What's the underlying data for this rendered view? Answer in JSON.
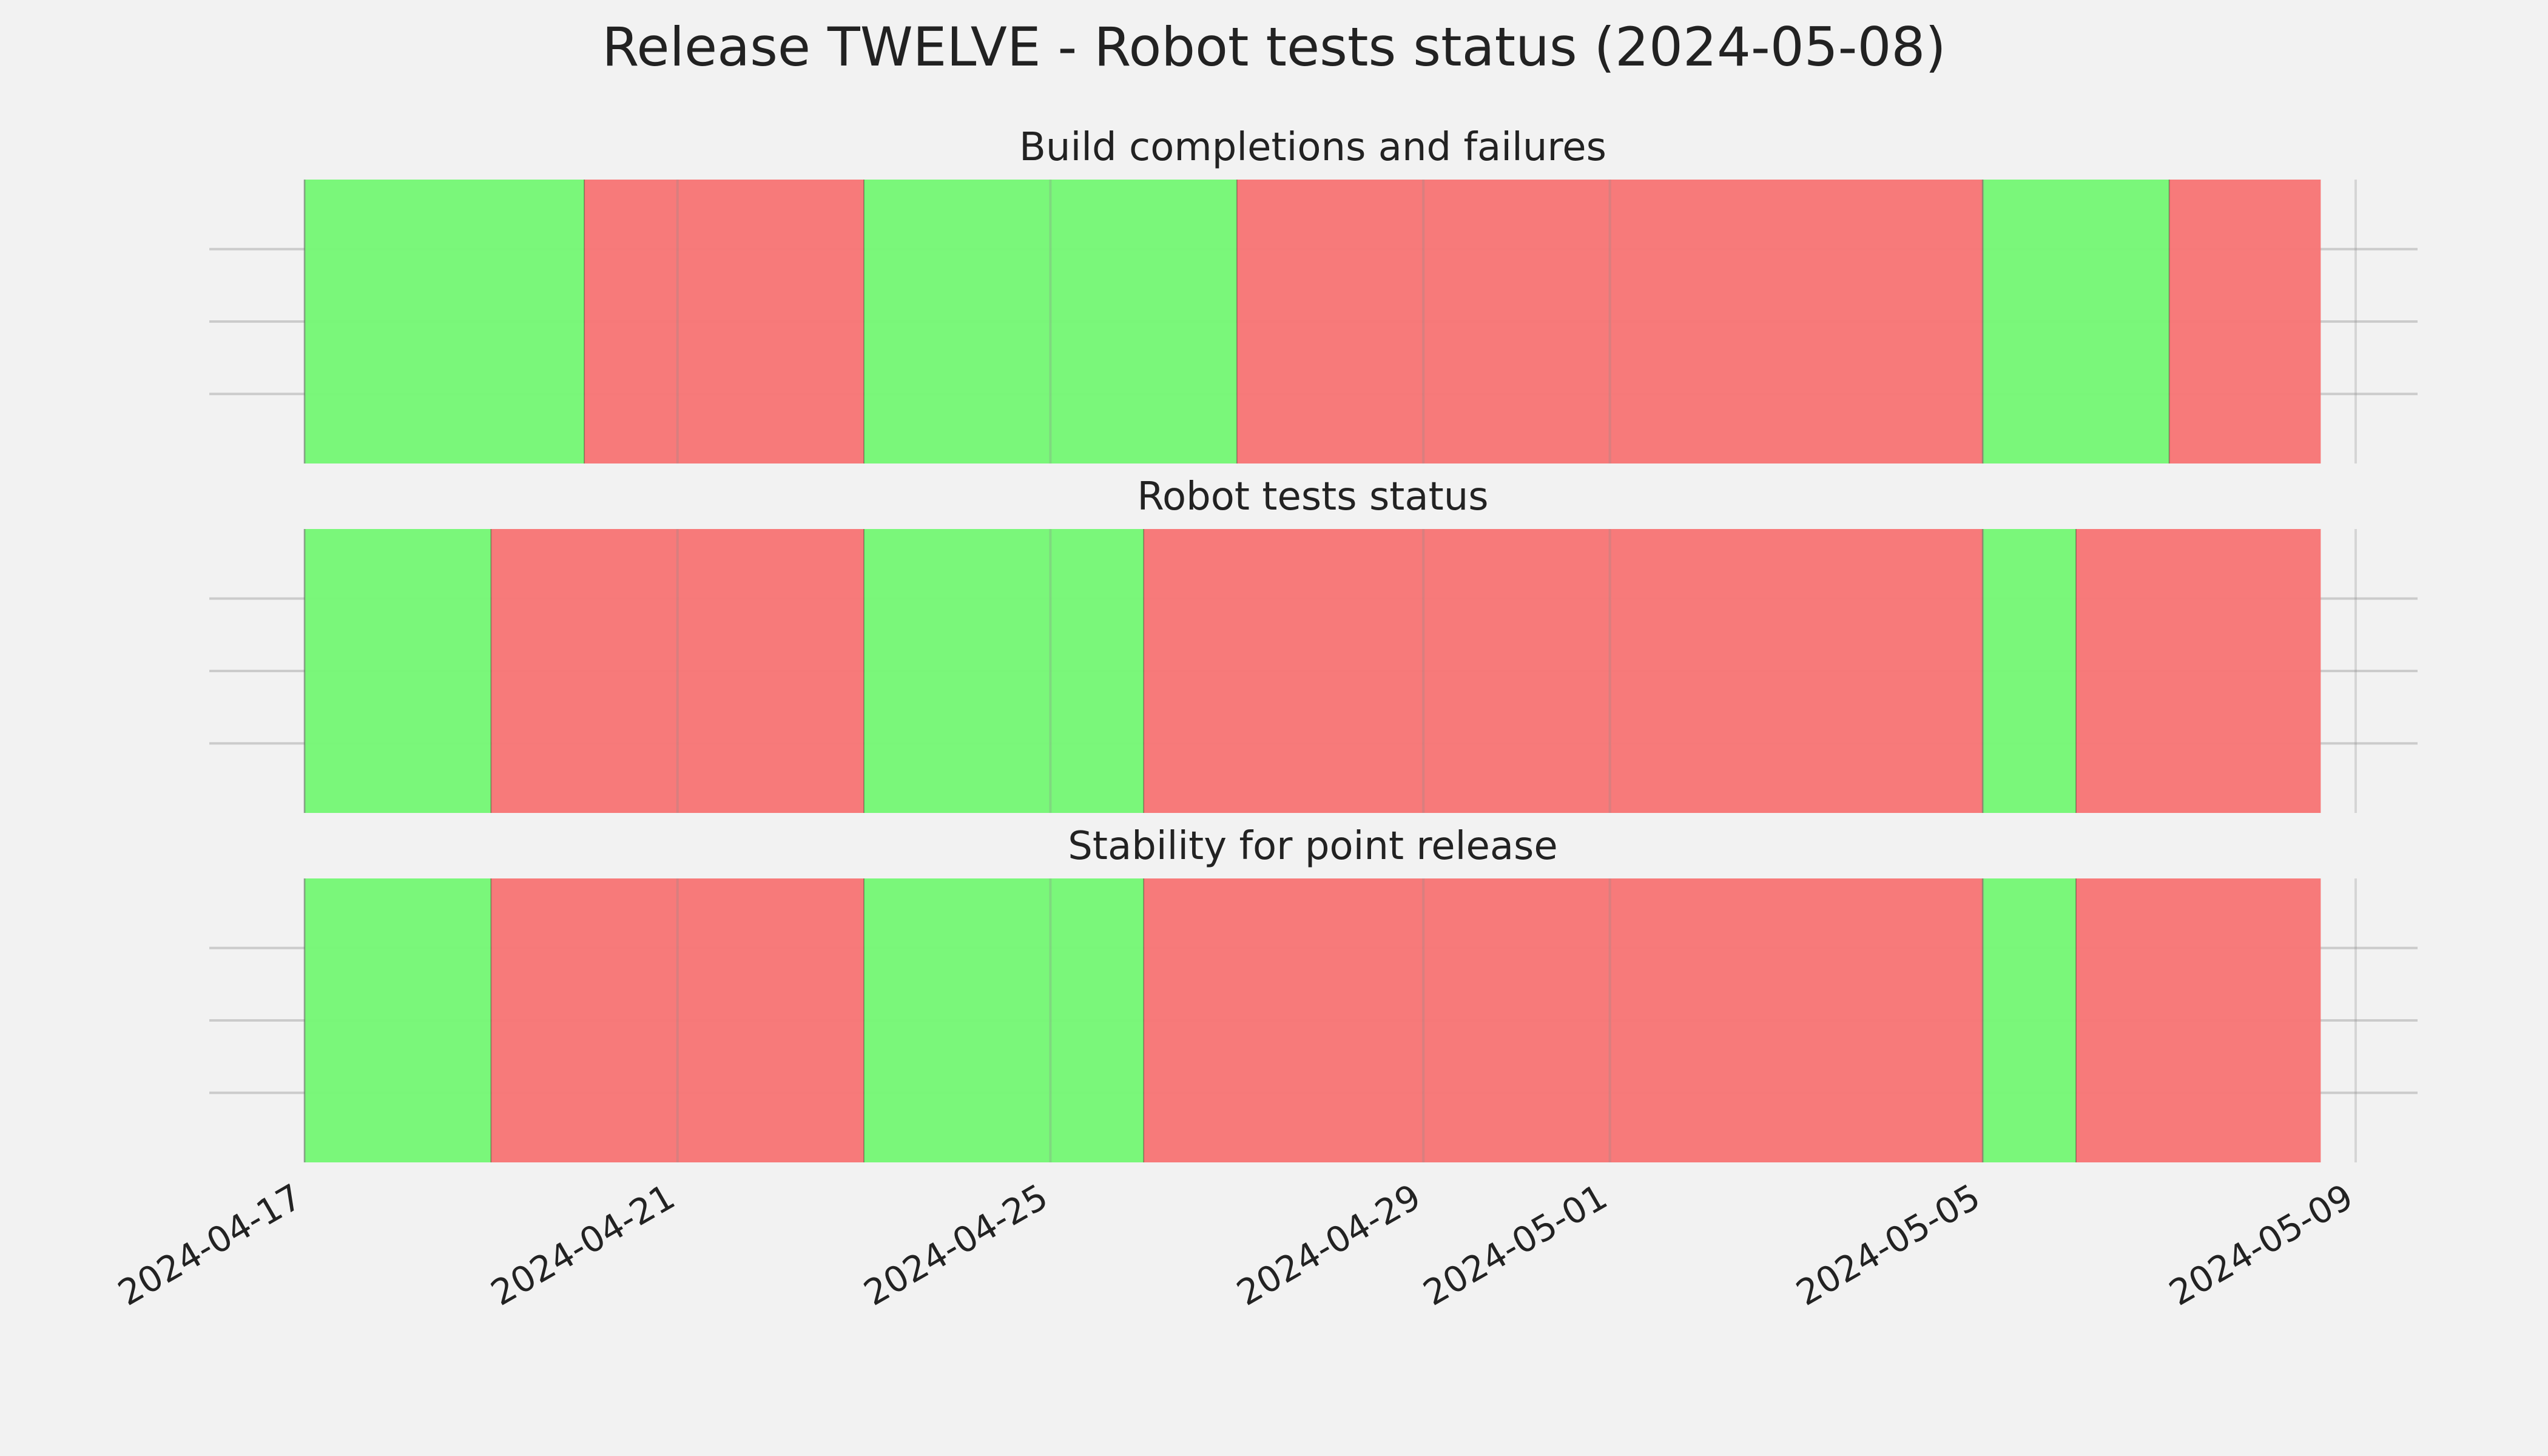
{
  "chart_data": {
    "type": "timeline",
    "title": "Release TWELVE - Robot tests status (2024-05-08)",
    "xlim": [
      "2024-04-17",
      "2024-05-09"
    ],
    "x_ticks": [
      "2024-04-17",
      "2024-04-21",
      "2024-04-25",
      "2024-04-29",
      "2024-05-01",
      "2024-05-05",
      "2024-05-09"
    ],
    "grid": true,
    "colors": {
      "pass": "#77f777",
      "fail": "#f77777"
    },
    "panels": [
      {
        "title": "Build completions and failures",
        "segments": [
          {
            "start": "2024-04-17",
            "end": "2024-04-20",
            "status": "pass"
          },
          {
            "start": "2024-04-20",
            "end": "2024-04-23",
            "status": "fail"
          },
          {
            "start": "2024-04-23",
            "end": "2024-04-27",
            "status": "pass"
          },
          {
            "start": "2024-04-27",
            "end": "2024-05-05",
            "status": "fail"
          },
          {
            "start": "2024-05-05",
            "end": "2024-05-07",
            "status": "pass"
          },
          {
            "start": "2024-05-07",
            "end": "2024-05-08 15:00",
            "status": "fail"
          }
        ]
      },
      {
        "title": "Robot tests status",
        "segments": [
          {
            "start": "2024-04-17",
            "end": "2024-04-19",
            "status": "pass"
          },
          {
            "start": "2024-04-19",
            "end": "2024-04-23",
            "status": "fail"
          },
          {
            "start": "2024-04-23",
            "end": "2024-04-26",
            "status": "pass"
          },
          {
            "start": "2024-04-26",
            "end": "2024-05-05",
            "status": "fail"
          },
          {
            "start": "2024-05-05",
            "end": "2024-05-06",
            "status": "pass"
          },
          {
            "start": "2024-05-06",
            "end": "2024-05-08 15:00",
            "status": "fail"
          }
        ]
      },
      {
        "title": "Stability for point release",
        "segments": [
          {
            "start": "2024-04-17",
            "end": "2024-04-19",
            "status": "pass"
          },
          {
            "start": "2024-04-19",
            "end": "2024-04-23",
            "status": "fail"
          },
          {
            "start": "2024-04-23",
            "end": "2024-04-26",
            "status": "pass"
          },
          {
            "start": "2024-04-26",
            "end": "2024-05-05",
            "status": "fail"
          },
          {
            "start": "2024-05-05",
            "end": "2024-05-06",
            "status": "pass"
          },
          {
            "start": "2024-05-06",
            "end": "2024-05-08 15:00",
            "status": "fail"
          }
        ]
      }
    ]
  }
}
